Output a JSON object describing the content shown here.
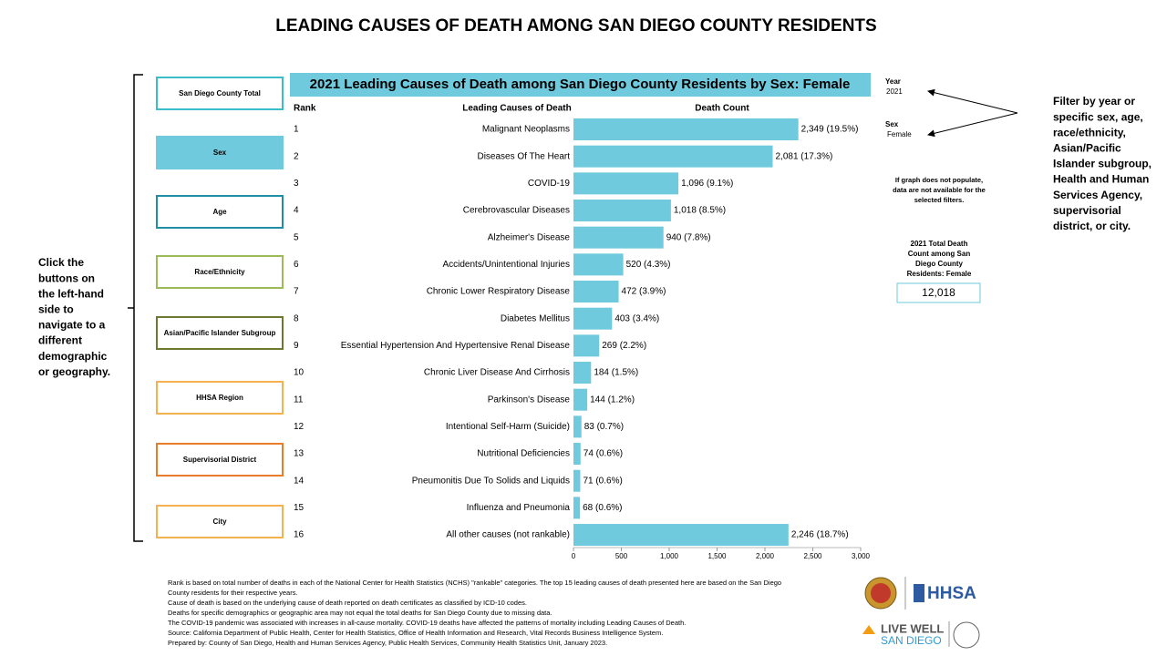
{
  "header": {
    "title": "LEADING CAUSES OF DEATH AMONG SAN DIEGO COUNTY RESIDENTS"
  },
  "nav": {
    "buttons": [
      {
        "label": "San Diego County Total",
        "color": "#3bbcc9",
        "selected": false
      },
      {
        "label": "Sex",
        "color": "#6ecadc",
        "selected": true
      },
      {
        "label": "Age",
        "color": "#1f8fa6",
        "selected": false
      },
      {
        "label": "Race/Ethnicity",
        "color": "#9bbb59",
        "selected": false
      },
      {
        "label": "Asian/Pacific Islander Subgroup",
        "color": "#6b7a2e",
        "selected": false
      },
      {
        "label": "HHSA Region",
        "color": "#f5b050",
        "selected": false
      },
      {
        "label": "Supervisorial District",
        "color": "#e87d2c",
        "selected": false
      },
      {
        "label": "City",
        "color": "#f5b050",
        "selected": false
      }
    ],
    "help": [
      "Click the",
      "buttons on",
      "the left-hand",
      "side to",
      "navigate to a",
      "different",
      "demographic",
      "or geography."
    ]
  },
  "filters": {
    "year_label": "Year",
    "year": "2021",
    "sex_label": "Sex",
    "sex": "Female",
    "help": [
      "Filter by year or",
      "specific sex, age,",
      "race/ethnicity,",
      "Asian/Pacific",
      "Islander subgroup,",
      "Health and Human",
      "Services Agency,",
      "supervisorial",
      "district, or city."
    ]
  },
  "note": [
    "If graph does not populate,",
    "data are not available for the",
    "selected filters."
  ],
  "summary": {
    "label": [
      "2021 Total Death",
      "Count among San",
      "Diego County",
      "Residents: Female"
    ],
    "value": "12,018"
  },
  "chart_data": {
    "type": "hbar",
    "title": "2021 Leading Causes of Death among San Diego County Residents by Sex: Female",
    "columns": [
      "Rank",
      "Leading Causes of Death",
      "Death Count"
    ],
    "ranks": [
      1,
      2,
      3,
      4,
      5,
      6,
      7,
      8,
      9,
      10,
      11,
      12,
      13,
      14,
      15,
      16
    ],
    "categories": [
      "Malignant Neoplasms",
      "Diseases Of The Heart",
      "COVID-19",
      "Cerebrovascular Diseases",
      "Alzheimer's Disease",
      "Accidents/Unintentional Injuries",
      "Chronic Lower Respiratory Disease",
      "Diabetes Mellitus",
      "Essential Hypertension And Hypertensive Renal Disease",
      "Chronic Liver Disease And Cirrhosis",
      "Parkinson's Disease",
      "Intentional Self-Harm (Suicide)",
      "Nutritional Deficiencies",
      "Pneumonitis Due To Solids and Liquids",
      "Influenza and Pneumonia",
      "All other causes (not rankable)"
    ],
    "values": [
      2349,
      2081,
      1096,
      1018,
      940,
      520,
      472,
      403,
      269,
      184,
      144,
      83,
      74,
      71,
      68,
      2246
    ],
    "value_labels": [
      "2,349 (19.5%)",
      "2,081 (17.3%)",
      "1,096 (9.1%)",
      "1,018 (8.5%)",
      "940 (7.8%)",
      "520 (4.3%)",
      "472 (3.9%)",
      "403 (3.4%)",
      "269 (2.2%)",
      "184 (1.5%)",
      "144 (1.2%)",
      "83 (0.7%)",
      "74 (0.6%)",
      "71 (0.6%)",
      "68 (0.6%)",
      "2,246 (18.7%)"
    ],
    "color": "#6ecadc",
    "xlim": [
      0,
      3000
    ],
    "xticks": [
      0,
      500,
      {
        "value": 1000,
        "label": "1,000"
      },
      {
        "value": 1500,
        "label": "1,500"
      },
      {
        "value": 2000,
        "label": "2,000"
      },
      {
        "value": 2500,
        "label": "2,500"
      },
      {
        "value": 3000,
        "label": "3,000"
      }
    ]
  },
  "footer": {
    "notes": [
      "Rank is based on total number of deaths in each of the National Center for Health Statistics (NCHS) \"rankable\" categories. The top 15 leading causes of death presented here are based on the San Diego",
      "County residents for their respective years.",
      "Cause of death is based on the underlying cause of death reported on death certificates as classified by ICD-10 codes.",
      "Deaths for specific demographics or geographic area may not equal the total deaths for San Diego County due to missing data.",
      "The COVID-19 pandemic was associated with increases in all-cause mortality. COVID-19 deaths have affected the patterns of mortality including Leading Causes of Death.",
      "Source: California Department of Public Health, Center for Health Statistics, Office of Health Information and Research, Vital Records Business Intelligence System.",
      "Prepared by: County of San Diego, Health and Human Services Agency, Public Health Services, Community Health Statistics Unit, January 2023."
    ],
    "logo_hhsa": "HHSA",
    "logo_live_well": "LIVE WELL",
    "logo_san_diego": "SAN DIEGO"
  }
}
